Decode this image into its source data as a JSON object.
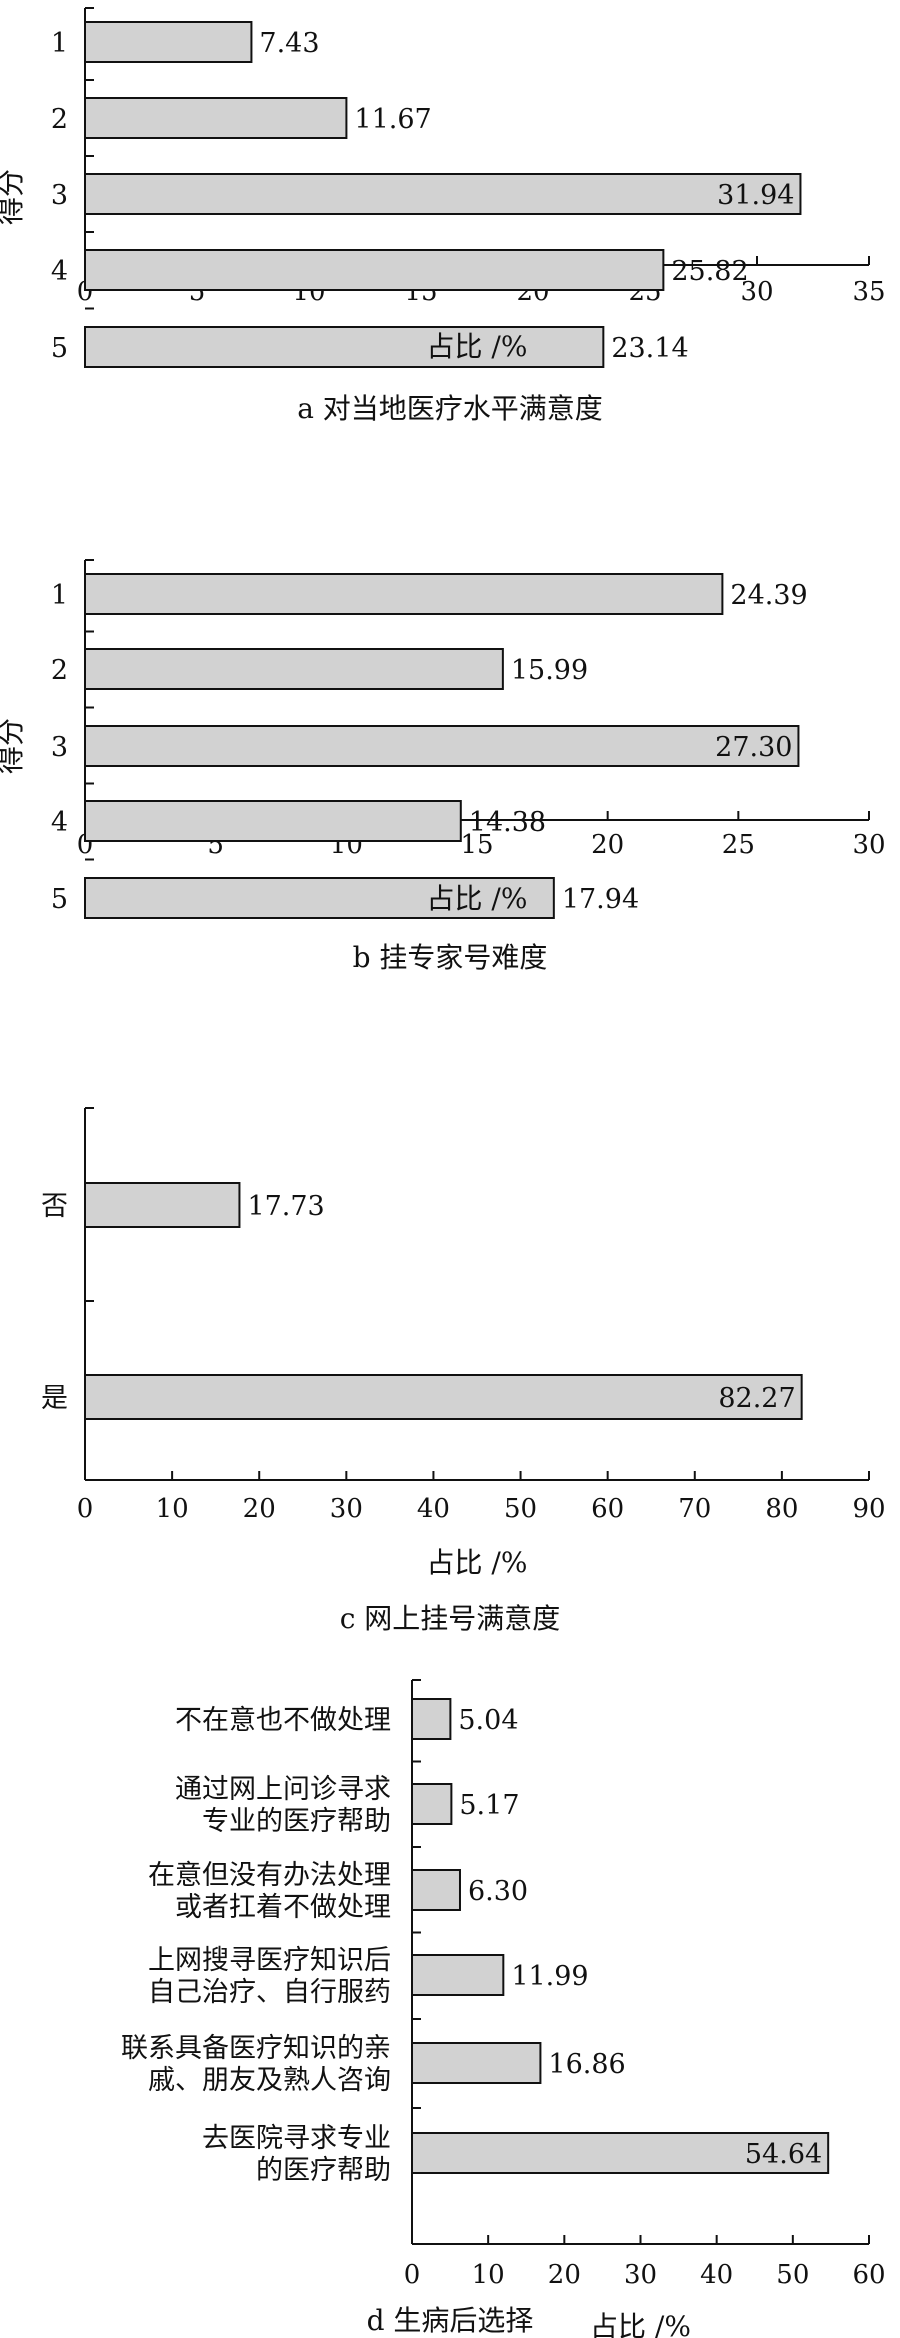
{
  "chart_data": [
    {
      "type": "bar",
      "orientation": "horizontal",
      "title": "a  对当地医疗水平满意度",
      "ylabel": "得分",
      "xlabel": "占比 /%",
      "categories": [
        "1",
        "2",
        "3",
        "4",
        "5"
      ],
      "values": [
        7.43,
        11.67,
        31.94,
        25.82,
        23.14
      ],
      "value_labels": [
        "7.43",
        "11.67",
        "31.94",
        "25.82",
        "23.14"
      ],
      "xlim": [
        0,
        35
      ],
      "xticks": [
        0,
        5,
        10,
        15,
        20,
        25,
        30,
        35
      ],
      "xtick_labels": [
        "0",
        "5",
        "10",
        "15",
        "20",
        "25",
        "30",
        "35"
      ],
      "grid": false
    },
    {
      "type": "bar",
      "orientation": "horizontal",
      "title": "b  挂专家号难度",
      "ylabel": "得分",
      "xlabel": "占比 /%",
      "categories": [
        "1",
        "2",
        "3",
        "4",
        "5"
      ],
      "values": [
        24.39,
        15.99,
        27.3,
        14.38,
        17.94
      ],
      "value_labels": [
        "24.39",
        "15.99",
        "27.30",
        "14.38",
        "17.94"
      ],
      "xlim": [
        0,
        30
      ],
      "xticks": [
        0,
        5,
        10,
        15,
        20,
        25,
        30
      ],
      "xtick_labels": [
        "0",
        "5",
        "10",
        "15",
        "20",
        "25",
        "30"
      ],
      "grid": false
    },
    {
      "type": "bar",
      "orientation": "horizontal",
      "title": "c  网上挂号满意度",
      "ylabel": "",
      "xlabel": "占比 /%",
      "categories": [
        "否",
        "是"
      ],
      "values": [
        17.73,
        82.27
      ],
      "value_labels": [
        "17.73",
        "82.27"
      ],
      "xlim": [
        0,
        90
      ],
      "xticks": [
        0,
        10,
        20,
        30,
        40,
        50,
        60,
        70,
        80,
        90
      ],
      "xtick_labels": [
        "0",
        "10",
        "20",
        "30",
        "40",
        "50",
        "60",
        "70",
        "80",
        "90"
      ],
      "grid": false
    },
    {
      "type": "bar",
      "orientation": "horizontal",
      "title": "d  生病后选择",
      "ylabel": "",
      "xlabel": "占比 /%",
      "categories": [
        [
          "不在意也不做处理"
        ],
        [
          "通过网上问诊寻求",
          "专业的医疗帮助"
        ],
        [
          "在意但没有办法处理",
          "或者扛着不做处理"
        ],
        [
          "上网搜寻医疗知识后",
          "自己治疗、自行服药"
        ],
        [
          "联系具备医疗知识的亲",
          "戚、朋友及熟人咨询"
        ],
        [
          "去医院寻求专业",
          "的医疗帮助"
        ]
      ],
      "values": [
        5.04,
        5.17,
        6.3,
        11.99,
        16.86,
        54.64
      ],
      "value_labels": [
        "5.04",
        "5.17",
        "6.30",
        "11.99",
        "16.86",
        "54.64"
      ],
      "xlim": [
        0,
        60
      ],
      "xticks": [
        0,
        10,
        20,
        30,
        40,
        50,
        60
      ],
      "xtick_labels": [
        "0",
        "10",
        "20",
        "30",
        "40",
        "50",
        "60"
      ],
      "grid": false
    }
  ]
}
